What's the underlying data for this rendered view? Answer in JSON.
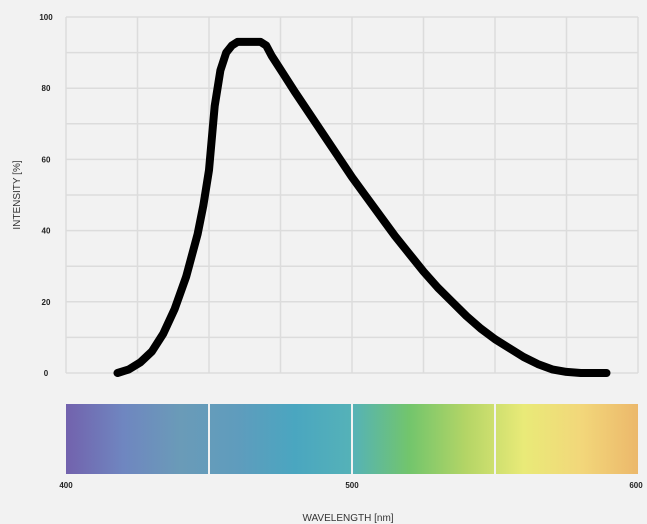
{
  "chart_data": {
    "type": "line",
    "xlabel": "WAVELENGTH [nm]",
    "ylabel": "INTENSITY [%]",
    "xlim": [
      400,
      600
    ],
    "ylim": [
      0,
      100
    ],
    "grid": true,
    "y_ticks": [
      "0",
      "20",
      "40",
      "60",
      "80",
      "100"
    ],
    "x_ticks": [
      "400",
      "500",
      "600"
    ],
    "series": [
      {
        "color": "#000000",
        "x": [
          418,
          422,
          426,
          430,
          434,
          438,
          442,
          446,
          448,
          450,
          452,
          454,
          456,
          458,
          460,
          462,
          465,
          468,
          470,
          472,
          476,
          480,
          485,
          490,
          495,
          500,
          505,
          510,
          515,
          520,
          525,
          530,
          535,
          540,
          545,
          550,
          555,
          560,
          565,
          570,
          575,
          580,
          585,
          589
        ],
        "y": [
          0,
          1,
          3,
          6,
          11,
          18,
          27,
          39,
          47,
          57,
          75,
          85,
          90,
          92,
          93,
          93,
          93,
          93,
          92,
          89,
          84,
          79,
          73,
          67,
          61,
          55,
          49.5,
          44,
          38.5,
          33.5,
          28.5,
          24,
          20,
          16,
          12.5,
          9.5,
          7,
          4.5,
          2.5,
          1,
          0.3,
          0,
          0,
          0
        ]
      }
    ],
    "spectrum_colors": [
      "#7262ad",
      "#6f86c0",
      "#6a9bb8",
      "#5f9cbd",
      "#4aa6c0",
      "#55b2b8",
      "#72c56c",
      "#b4d566",
      "#e9ea78",
      "#f2d77a",
      "#ecb86b"
    ]
  }
}
